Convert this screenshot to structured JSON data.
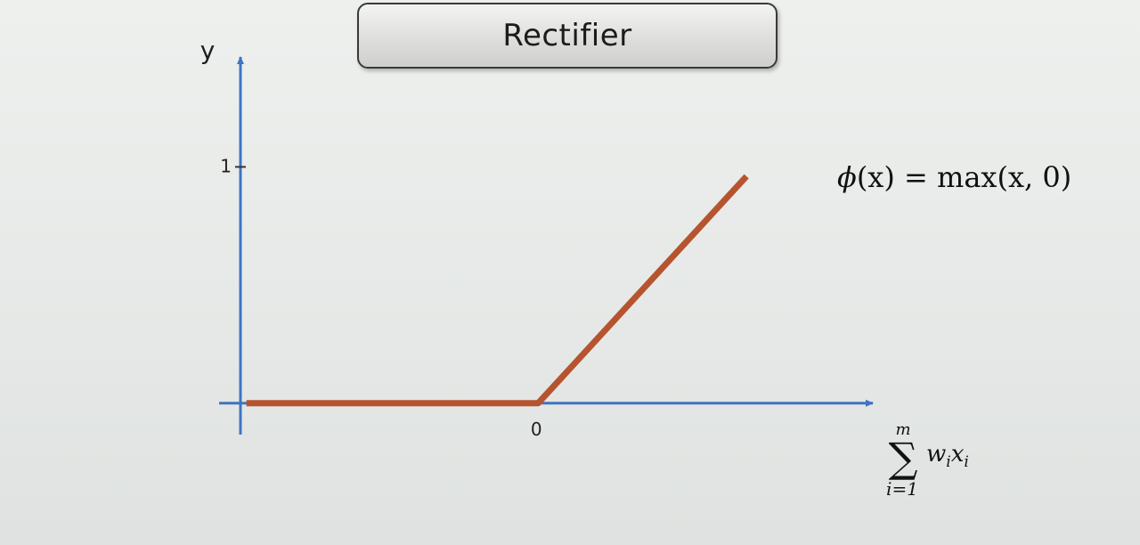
{
  "chart_data": {
    "type": "line",
    "title": "Rectifier",
    "ylabel": "y",
    "xlabel": {
      "sum_symbol": "∑",
      "sum_upper": "m",
      "sum_lower": "i=1",
      "summand": "w",
      "summand_sub": "i",
      "summand2": "x",
      "summand2_sub": "i"
    },
    "formula": {
      "phi": "ϕ",
      "rest": "(x) = max(x, 0)"
    },
    "x_tick_labels": [
      "0"
    ],
    "y_tick_labels": [
      "1"
    ],
    "x_ticks": [
      0
    ],
    "y_ticks": [
      1
    ],
    "xlim": [
      -1.0,
      0.9
    ],
    "ylim": [
      -0.08,
      1.45
    ],
    "series": [
      {
        "x": [
          -0.98,
          0,
          0.7
        ],
        "y": [
          0,
          0,
          0.96
        ]
      }
    ],
    "colors": {
      "curve": "#b5542f",
      "axis": "#3f74c2"
    },
    "grid": false
  }
}
